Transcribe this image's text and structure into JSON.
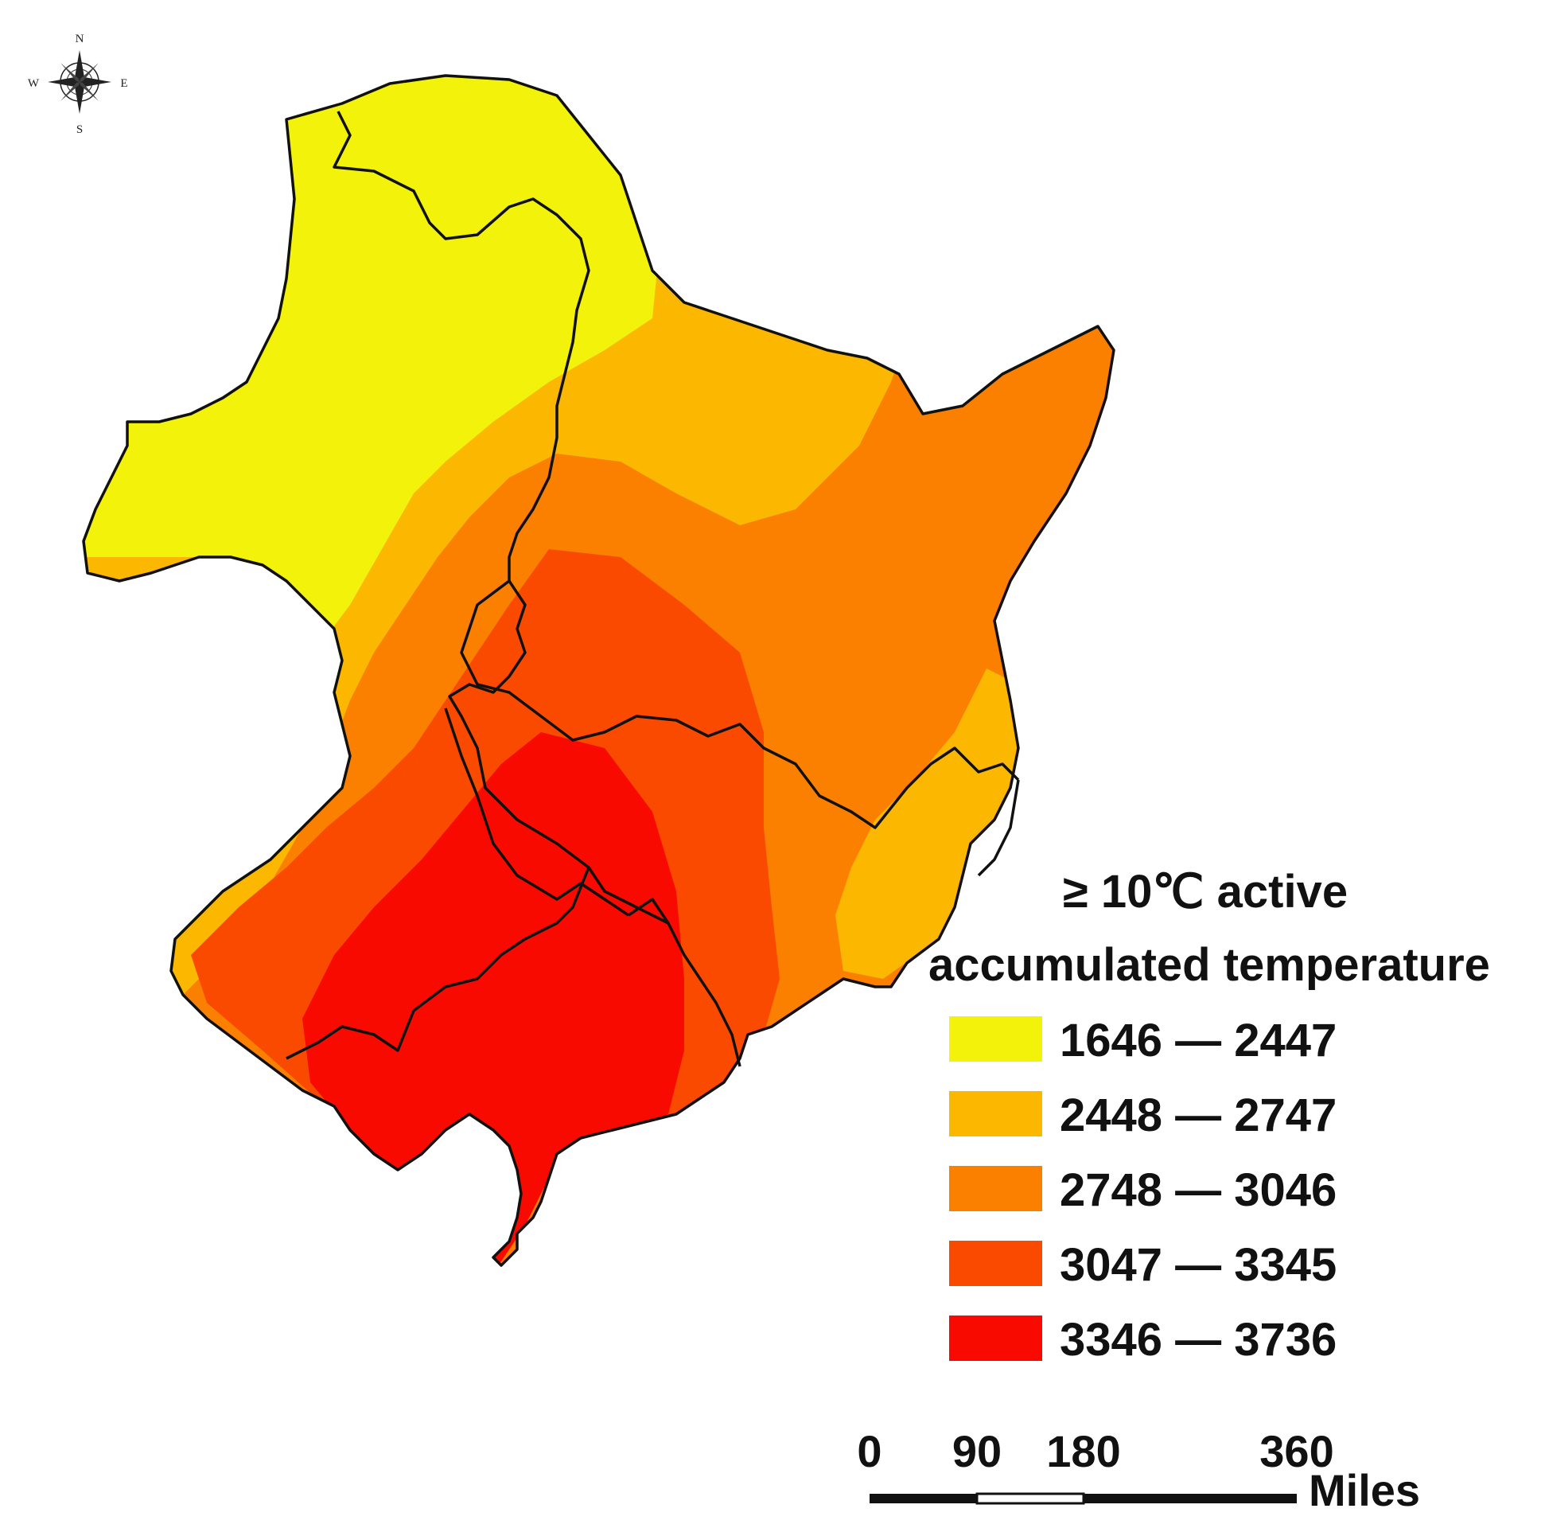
{
  "compass": {
    "icon": "compass-rose-icon",
    "n": "N",
    "s": "S",
    "e": "E",
    "w": "W"
  },
  "legend": {
    "title_line1": "≥ 10℃ active",
    "title_line2": "accumulated temperature",
    "classes": [
      {
        "label": "1646 — 2447",
        "color": "#f2f20a"
      },
      {
        "label": "2448 — 2747",
        "color": "#fcb800"
      },
      {
        "label": "2748 — 3046",
        "color": "#fb8000"
      },
      {
        "label": "3047 — 3345",
        "color": "#fa4a00"
      },
      {
        "label": "3346 — 3736",
        "color": "#f80a00"
      }
    ]
  },
  "scalebar": {
    "ticks": [
      "0",
      "90",
      "180",
      "360"
    ],
    "unit": "Miles"
  }
}
